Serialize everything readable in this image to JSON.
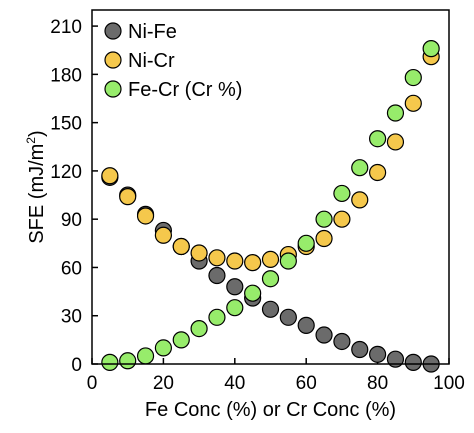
{
  "chart_data": {
    "type": "scatter",
    "xlabel": "Fe Conc (%) or Cr Conc (%)",
    "ylabel_main": "SFE (mJ/m",
    "ylabel_sup": "2",
    "ylabel_close": ")",
    "xlim": [
      0,
      100
    ],
    "ylim": [
      0,
      220
    ],
    "x_ticks": [
      0,
      20,
      40,
      60,
      80,
      100
    ],
    "y_ticks": [
      0,
      30,
      60,
      90,
      120,
      150,
      180,
      210
    ],
    "grid": false,
    "legend_position": "top-left",
    "series": [
      {
        "name": "Ni-Fe",
        "color": "#6b6b6b",
        "points": [
          [
            5,
            116
          ],
          [
            10,
            105
          ],
          [
            15,
            93
          ],
          [
            20,
            83
          ],
          [
            25,
            73
          ],
          [
            30,
            64
          ],
          [
            35,
            55
          ],
          [
            40,
            48
          ],
          [
            45,
            41
          ],
          [
            50,
            34
          ],
          [
            55,
            29
          ],
          [
            60,
            24
          ],
          [
            65,
            18
          ],
          [
            70,
            14
          ],
          [
            75,
            9
          ],
          [
            80,
            6
          ],
          [
            85,
            3
          ],
          [
            90,
            1
          ],
          [
            95,
            0
          ]
        ]
      },
      {
        "name": "Ni-Cr",
        "color": "#f5c84c",
        "points": [
          [
            5,
            117
          ],
          [
            10,
            104
          ],
          [
            15,
            92
          ],
          [
            20,
            80
          ],
          [
            25,
            73
          ],
          [
            30,
            69
          ],
          [
            35,
            66
          ],
          [
            40,
            64
          ],
          [
            45,
            63
          ],
          [
            50,
            65
          ],
          [
            55,
            68
          ],
          [
            60,
            73
          ],
          [
            65,
            78
          ],
          [
            70,
            90
          ],
          [
            75,
            102
          ],
          [
            80,
            119
          ],
          [
            85,
            138
          ],
          [
            90,
            162
          ],
          [
            95,
            191
          ]
        ]
      },
      {
        "name": "Fe-Cr (Cr %)",
        "color": "#97ec6b",
        "points": [
          [
            5,
            1
          ],
          [
            10,
            2
          ],
          [
            15,
            5
          ],
          [
            20,
            10
          ],
          [
            25,
            15
          ],
          [
            30,
            22
          ],
          [
            35,
            29
          ],
          [
            40,
            35
          ],
          [
            45,
            44
          ],
          [
            50,
            53
          ],
          [
            55,
            64
          ],
          [
            60,
            75
          ],
          [
            65,
            90
          ],
          [
            70,
            106
          ],
          [
            75,
            122
          ],
          [
            80,
            140
          ],
          [
            85,
            156
          ],
          [
            90,
            178
          ],
          [
            95,
            196
          ]
        ]
      }
    ]
  }
}
